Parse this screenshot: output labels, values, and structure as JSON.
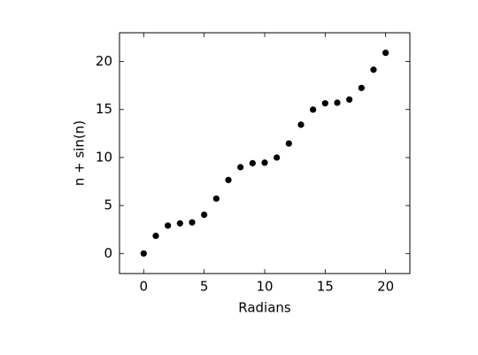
{
  "chart_data": {
    "type": "scatter",
    "x_label": "Radians",
    "y_label": "n + sin(n)",
    "x": [
      0,
      1,
      2,
      3,
      4,
      5,
      6,
      7,
      8,
      9,
      10,
      11,
      12,
      13,
      14,
      15,
      16,
      17,
      18,
      19,
      20
    ],
    "values": [
      0,
      1.84,
      2.91,
      3.14,
      3.24,
      4.04,
      5.72,
      7.66,
      8.99,
      9.41,
      9.46,
      10.0,
      11.46,
      13.42,
      14.99,
      15.65,
      15.71,
      16.04,
      17.25,
      19.15,
      20.91
    ],
    "color": "#000000",
    "xlim": [
      -2,
      22
    ],
    "xticks": [
      0,
      5,
      10,
      15,
      20
    ],
    "ylim": [
      -2.09,
      23
    ],
    "yticks": [
      0,
      5,
      10,
      15,
      20
    ],
    "grid": false
  }
}
